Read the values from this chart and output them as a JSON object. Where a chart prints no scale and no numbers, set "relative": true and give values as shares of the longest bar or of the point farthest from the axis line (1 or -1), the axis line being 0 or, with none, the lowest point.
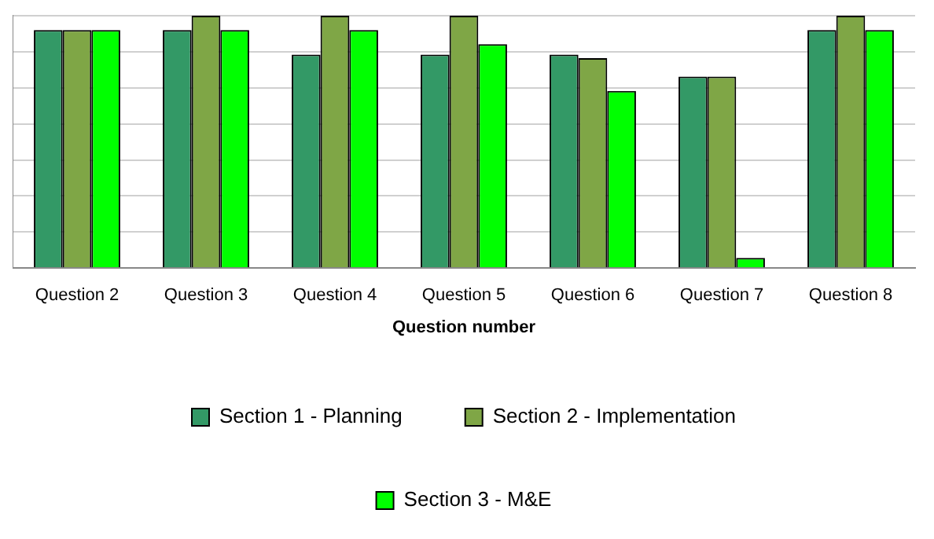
{
  "chart_data": {
    "type": "bar",
    "relative": true,
    "xlabel": "Question number",
    "categories": [
      "Question 2",
      "Question 3",
      "Question 4",
      "Question 5",
      "Question 6",
      "Question 7",
      "Question 8"
    ],
    "series": [
      {
        "name": "Section 1 - Planning",
        "color": "#339966",
        "values": [
          0.943,
          0.943,
          0.846,
          0.846,
          0.846,
          0.759,
          0.943
        ]
      },
      {
        "name": "Section 2 - Implementation",
        "color": "#7fa646",
        "values": [
          0.943,
          1,
          1,
          1,
          0.832,
          0.759,
          1
        ]
      },
      {
        "name": "Section 3 - M&E",
        "color": "#00ff00",
        "values": [
          0.943,
          0.943,
          0.943,
          0.887,
          0.702,
          0.04,
          0.943
        ]
      }
    ],
    "grid": "y",
    "legend": "bottom"
  }
}
